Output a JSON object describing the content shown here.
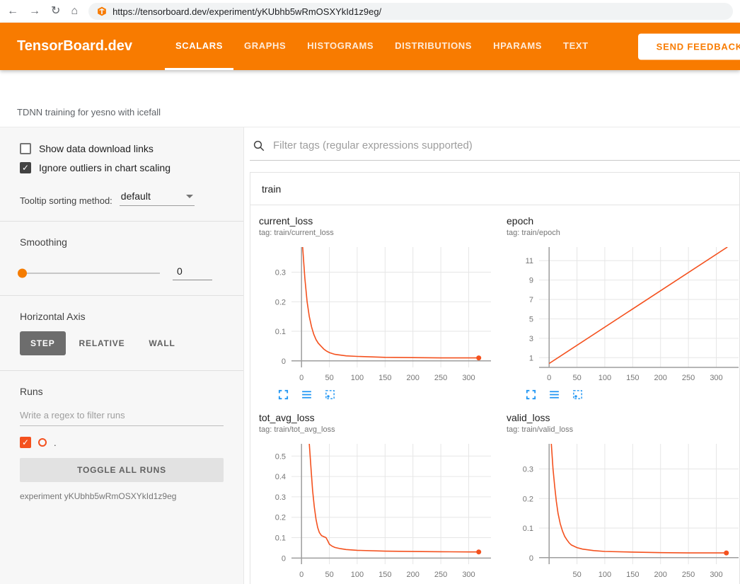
{
  "colors": {
    "header_orange": "#f87b00",
    "line": "#f4511e",
    "axis": "#9e9e9e",
    "grid": "#e6e6e6",
    "icon_blue": "#2196f3"
  },
  "icons": {
    "check": "✓",
    "back": "←",
    "forward": "→",
    "reload": "↻",
    "home": "⌂"
  },
  "browser": {
    "url": "https://tensorboard.dev/experiment/yKUbhb5wRmOSXYkId1z9eg/"
  },
  "header": {
    "title": "TensorBoard.dev",
    "tabs": [
      {
        "label": "SCALARS",
        "active": true
      },
      {
        "label": "GRAPHS",
        "active": false
      },
      {
        "label": "HISTOGRAMS",
        "active": false
      },
      {
        "label": "DISTRIBUTIONS",
        "active": false
      },
      {
        "label": "HPARAMS",
        "active": false
      },
      {
        "label": "TEXT",
        "active": false
      }
    ],
    "feedback": "SEND FEEDBACK"
  },
  "experiment_title": "TDNN training for yesno with icefall",
  "sidebar": {
    "show_download_label": "Show data download links",
    "ignore_outliers_label": "Ignore outliers in chart scaling",
    "tooltip_label": "Tooltip sorting method:",
    "tooltip_value": "default",
    "smoothing_label": "Smoothing",
    "smoothing_value": "0",
    "haxis_label": "Horizontal Axis",
    "haxis_buttons": [
      {
        "label": "STEP",
        "active": true
      },
      {
        "label": "RELATIVE",
        "active": false
      },
      {
        "label": "WALL",
        "active": false
      }
    ],
    "runs_label": "Runs",
    "runs_filter_placeholder": "Write a regex to filter runs",
    "run_name": ".",
    "toggle_all_label": "TOGGLE ALL RUNS",
    "experiment_note": "experiment yKUbhb5wRmOSXYkId1z9eg"
  },
  "main": {
    "filter_placeholder": "Filter tags (regular expressions supported)",
    "section_title": "train",
    "chart_toolbar_icons": [
      "expand-chart-icon",
      "chart-lines-icon",
      "fit-domain-icon"
    ]
  },
  "chart_data": [
    {
      "type": "line",
      "name": "current_loss",
      "title": "current_loss",
      "tag": "tag: train/current_loss",
      "xlim": [
        -18,
        340
      ],
      "ylim": [
        -0.022,
        0.385
      ],
      "x_ticks": [
        0,
        50,
        100,
        150,
        200,
        250,
        300
      ],
      "y_ticks": [
        0,
        0.1,
        0.2,
        0.3
      ],
      "end_dot": true,
      "series": [
        {
          "name": ".",
          "points": [
            [
              2,
              0.385
            ],
            [
              6,
              0.28
            ],
            [
              10,
              0.2
            ],
            [
              14,
              0.15
            ],
            [
              18,
              0.115
            ],
            [
              22,
              0.09
            ],
            [
              26,
              0.072
            ],
            [
              30,
              0.06
            ],
            [
              35,
              0.05
            ],
            [
              40,
              0.04
            ],
            [
              45,
              0.033
            ],
            [
              50,
              0.028
            ],
            [
              60,
              0.022
            ],
            [
              80,
              0.017
            ],
            [
              100,
              0.015
            ],
            [
              150,
              0.012
            ],
            [
              200,
              0.011
            ],
            [
              250,
              0.01
            ],
            [
              300,
              0.01
            ],
            [
              318,
              0.01
            ]
          ]
        }
      ]
    },
    {
      "type": "line",
      "name": "epoch",
      "title": "epoch",
      "tag": "tag: train/epoch",
      "xlim": [
        -18,
        340
      ],
      "ylim": [
        0,
        12.4
      ],
      "x_ticks": [
        0,
        50,
        100,
        150,
        200,
        250,
        300
      ],
      "y_ticks": [
        1,
        3,
        5,
        7,
        9,
        11
      ],
      "end_dot": false,
      "series": [
        {
          "name": ".",
          "points": [
            [
              0,
              0.4
            ],
            [
              320,
              12.4
            ]
          ]
        }
      ]
    },
    {
      "type": "line",
      "name": "tot_avg_loss",
      "title": "tot_avg_loss",
      "tag": "tag: train/tot_avg_loss",
      "xlim": [
        -18,
        340
      ],
      "ylim": [
        -0.03,
        0.56
      ],
      "x_ticks": [
        0,
        50,
        100,
        150,
        200,
        250,
        300
      ],
      "y_ticks": [
        0,
        0.1,
        0.2,
        0.3,
        0.4,
        0.5
      ],
      "end_dot": true,
      "series": [
        {
          "name": ".",
          "points": [
            [
              14,
              0.56
            ],
            [
              17,
              0.44
            ],
            [
              20,
              0.33
            ],
            [
              23,
              0.25
            ],
            [
              26,
              0.19
            ],
            [
              29,
              0.15
            ],
            [
              32,
              0.125
            ],
            [
              36,
              0.11
            ],
            [
              40,
              0.105
            ],
            [
              44,
              0.1
            ],
            [
              47,
              0.085
            ],
            [
              50,
              0.068
            ],
            [
              55,
              0.058
            ],
            [
              60,
              0.052
            ],
            [
              70,
              0.046
            ],
            [
              80,
              0.042
            ],
            [
              100,
              0.038
            ],
            [
              150,
              0.034
            ],
            [
              200,
              0.032
            ],
            [
              250,
              0.031
            ],
            [
              300,
              0.03
            ],
            [
              318,
              0.03
            ]
          ]
        }
      ]
    },
    {
      "type": "line",
      "name": "valid_loss",
      "title": "valid_loss",
      "tag": "tag: train/valid_loss",
      "xlim": [
        -18,
        340
      ],
      "ylim": [
        -0.022,
        0.385
      ],
      "x_ticks": [
        50,
        100,
        150,
        200,
        250,
        300
      ],
      "y_ticks": [
        0,
        0.1,
        0.2,
        0.3
      ],
      "end_dot": true,
      "series": [
        {
          "name": ".",
          "points": [
            [
              4,
              0.385
            ],
            [
              7,
              0.3
            ],
            [
              10,
              0.24
            ],
            [
              13,
              0.19
            ],
            [
              16,
              0.15
            ],
            [
              20,
              0.115
            ],
            [
              24,
              0.09
            ],
            [
              28,
              0.072
            ],
            [
              32,
              0.06
            ],
            [
              36,
              0.05
            ],
            [
              40,
              0.043
            ],
            [
              50,
              0.034
            ],
            [
              60,
              0.029
            ],
            [
              80,
              0.024
            ],
            [
              100,
              0.021
            ],
            [
              150,
              0.019
            ],
            [
              200,
              0.017
            ],
            [
              250,
              0.016
            ],
            [
              300,
              0.016
            ],
            [
              318,
              0.016
            ]
          ]
        }
      ]
    }
  ]
}
